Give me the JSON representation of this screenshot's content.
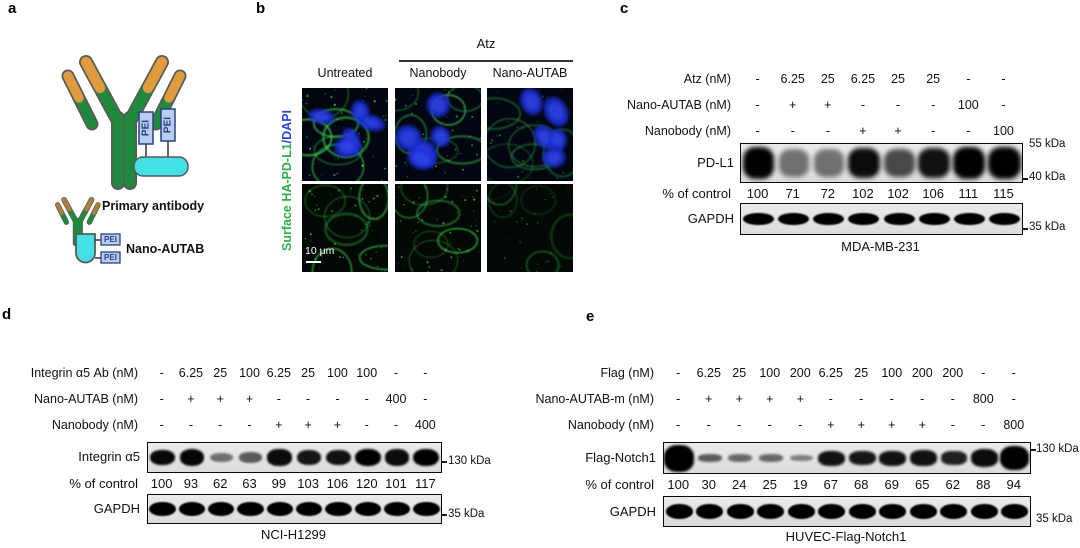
{
  "panel_letters": {
    "a": "a",
    "b": "b",
    "c": "c",
    "d": "d",
    "e": "e"
  },
  "panel_a": {
    "pei": "PEI",
    "legend_primary": "Primary antibody",
    "legend_nano_autab": "Nano-AUTAB"
  },
  "panel_b": {
    "group_header": "Atz",
    "col_untreated": "Untreated",
    "col_nanobody": "Nanobody",
    "col_nano_autab": "Nano-AUTAB",
    "side_label_green": "Surface HA-PD-L1",
    "side_label_blue": "/DAPI",
    "scale_bar_label": "10 μm"
  },
  "panel_c": {
    "dose_rows": [
      {
        "label": "Atz (nM)",
        "values": [
          "-",
          "6.25",
          "25",
          "6.25",
          "25",
          "25",
          "-",
          "-"
        ]
      },
      {
        "label": "Nano-AUTAB (nM)",
        "values": [
          "-",
          "+",
          "+",
          "-",
          "-",
          "-",
          "100",
          "-"
        ]
      },
      {
        "label": "Nanobody (nM)",
        "values": [
          "-",
          "-",
          "-",
          "+",
          "+",
          "-",
          "-",
          "100"
        ]
      }
    ],
    "blot_label": "PD-L1",
    "percent_label": "% of control",
    "percent_values": [
      "100",
      "71",
      "72",
      "102",
      "102",
      "106",
      "111",
      "115"
    ],
    "loading_label": "GAPDH",
    "marker_top": "55 kDa",
    "marker_bottom": "40 kDa",
    "marker_loading": "35 kDa",
    "cell_line": "MDA-MB-231",
    "target_bands": [
      [
        1,
        0.82,
        0.9
      ],
      [
        0.5,
        0.72,
        0.85
      ],
      [
        0.5,
        0.72,
        0.85
      ],
      [
        0.95,
        0.8,
        0.9
      ],
      [
        0.68,
        0.75,
        0.88
      ],
      [
        0.92,
        0.8,
        0.9
      ],
      [
        1,
        0.85,
        0.92
      ],
      [
        1,
        0.85,
        0.95
      ]
    ],
    "gapdh_bands": [
      [
        1,
        0.42,
        0.88
      ],
      [
        1,
        0.42,
        0.88
      ],
      [
        1,
        0.42,
        0.88
      ],
      [
        1,
        0.42,
        0.88
      ],
      [
        1,
        0.42,
        0.88
      ],
      [
        1,
        0.42,
        0.88
      ],
      [
        1,
        0.42,
        0.88
      ],
      [
        1,
        0.42,
        0.88
      ]
    ]
  },
  "panel_d": {
    "dose_rows": [
      {
        "label": "Integrin α5 Ab (nM)",
        "values": [
          "-",
          "6.25",
          "25",
          "100",
          "6.25",
          "25",
          "100",
          "100",
          "-",
          "-"
        ]
      },
      {
        "label": "Nano-AUTAB (nM)",
        "values": [
          "-",
          "+",
          "+",
          "+",
          "-",
          "-",
          "-",
          "-",
          "400",
          "-"
        ]
      },
      {
        "label": "Nanobody (nM)",
        "values": [
          "-",
          "-",
          "-",
          "-",
          "+",
          "+",
          "+",
          "-",
          "-",
          "400"
        ]
      }
    ],
    "blot_label": "Integrin α5",
    "percent_label": "% of control",
    "percent_values": [
      "100",
      "93",
      "62",
      "63",
      "99",
      "103",
      "106",
      "120",
      "101",
      "117"
    ],
    "loading_label": "GAPDH",
    "marker_top": "130 kDa",
    "marker_loading": "35 kDa",
    "cell_line": "NCI-H1299",
    "target_bands": [
      [
        0.97,
        0.52,
        0.85
      ],
      [
        0.97,
        0.58,
        0.85
      ],
      [
        0.5,
        0.34,
        0.8
      ],
      [
        0.6,
        0.36,
        0.8
      ],
      [
        0.95,
        0.56,
        0.85
      ],
      [
        0.9,
        0.52,
        0.82
      ],
      [
        0.92,
        0.54,
        0.85
      ],
      [
        1,
        0.62,
        0.88
      ],
      [
        0.95,
        0.56,
        0.85
      ],
      [
        1,
        0.62,
        0.88
      ]
    ],
    "gapdh_bands": [
      [
        1,
        0.5,
        0.9
      ],
      [
        1,
        0.5,
        0.9
      ],
      [
        1,
        0.5,
        0.9
      ],
      [
        1,
        0.5,
        0.9
      ],
      [
        1,
        0.5,
        0.9
      ],
      [
        1,
        0.5,
        0.9
      ],
      [
        1,
        0.5,
        0.9
      ],
      [
        1,
        0.5,
        0.9
      ],
      [
        1,
        0.5,
        0.9
      ],
      [
        1,
        0.5,
        0.9
      ]
    ]
  },
  "panel_e": {
    "dose_rows": [
      {
        "label": "Flag (nM)",
        "values": [
          "-",
          "6.25",
          "25",
          "100",
          "200",
          "6.25",
          "25",
          "100",
          "200",
          "200",
          "-",
          "-"
        ]
      },
      {
        "label": "Nano-AUTAB-m (nM)",
        "values": [
          "-",
          "+",
          "+",
          "+",
          "+",
          "-",
          "-",
          "-",
          "-",
          "-",
          "800",
          "-"
        ]
      },
      {
        "label": "Nanobody (nM)",
        "values": [
          "-",
          "-",
          "-",
          "-",
          "-",
          "+",
          "+",
          "+",
          "+",
          "-",
          "-",
          "800"
        ]
      }
    ],
    "blot_label": "Flag-Notch1",
    "percent_label": "% of control",
    "percent_values": [
      "100",
      "30",
      "24",
      "25",
      "19",
      "67",
      "68",
      "69",
      "65",
      "62",
      "88",
      "94"
    ],
    "loading_label": "GAPDH",
    "marker_top": "130 kDa",
    "marker_loading": "35 kDa",
    "cell_line": "HUVEC-Flag-Notch1",
    "target_bands": [
      [
        1,
        0.9,
        0.98
      ],
      [
        0.6,
        0.26,
        0.8
      ],
      [
        0.55,
        0.28,
        0.8
      ],
      [
        0.55,
        0.26,
        0.8
      ],
      [
        0.45,
        0.22,
        0.75
      ],
      [
        0.92,
        0.5,
        0.88
      ],
      [
        0.9,
        0.48,
        0.88
      ],
      [
        0.92,
        0.5,
        0.88
      ],
      [
        0.92,
        0.52,
        0.88
      ],
      [
        0.85,
        0.45,
        0.85
      ],
      [
        0.95,
        0.6,
        0.9
      ],
      [
        1,
        0.8,
        0.95
      ]
    ],
    "gapdh_bands": [
      [
        1,
        0.5,
        0.9
      ],
      [
        1,
        0.5,
        0.9
      ],
      [
        1,
        0.5,
        0.9
      ],
      [
        1,
        0.5,
        0.9
      ],
      [
        1,
        0.5,
        0.9
      ],
      [
        1,
        0.5,
        0.9
      ],
      [
        1,
        0.5,
        0.9
      ],
      [
        1,
        0.5,
        0.9
      ],
      [
        1,
        0.5,
        0.9
      ],
      [
        1,
        0.5,
        0.9
      ],
      [
        1,
        0.5,
        0.9
      ],
      [
        1,
        0.5,
        0.9
      ]
    ]
  },
  "colors": {
    "label_green": "#2eae4a",
    "label_blue": "#2f46cf",
    "antibody_green": "#1f8a3c",
    "antibody_orange": "#e09b3d",
    "nanobody_cyan": "#45e0e6",
    "pei_fill": "#b9cdea",
    "pei_border": "#27408b"
  }
}
